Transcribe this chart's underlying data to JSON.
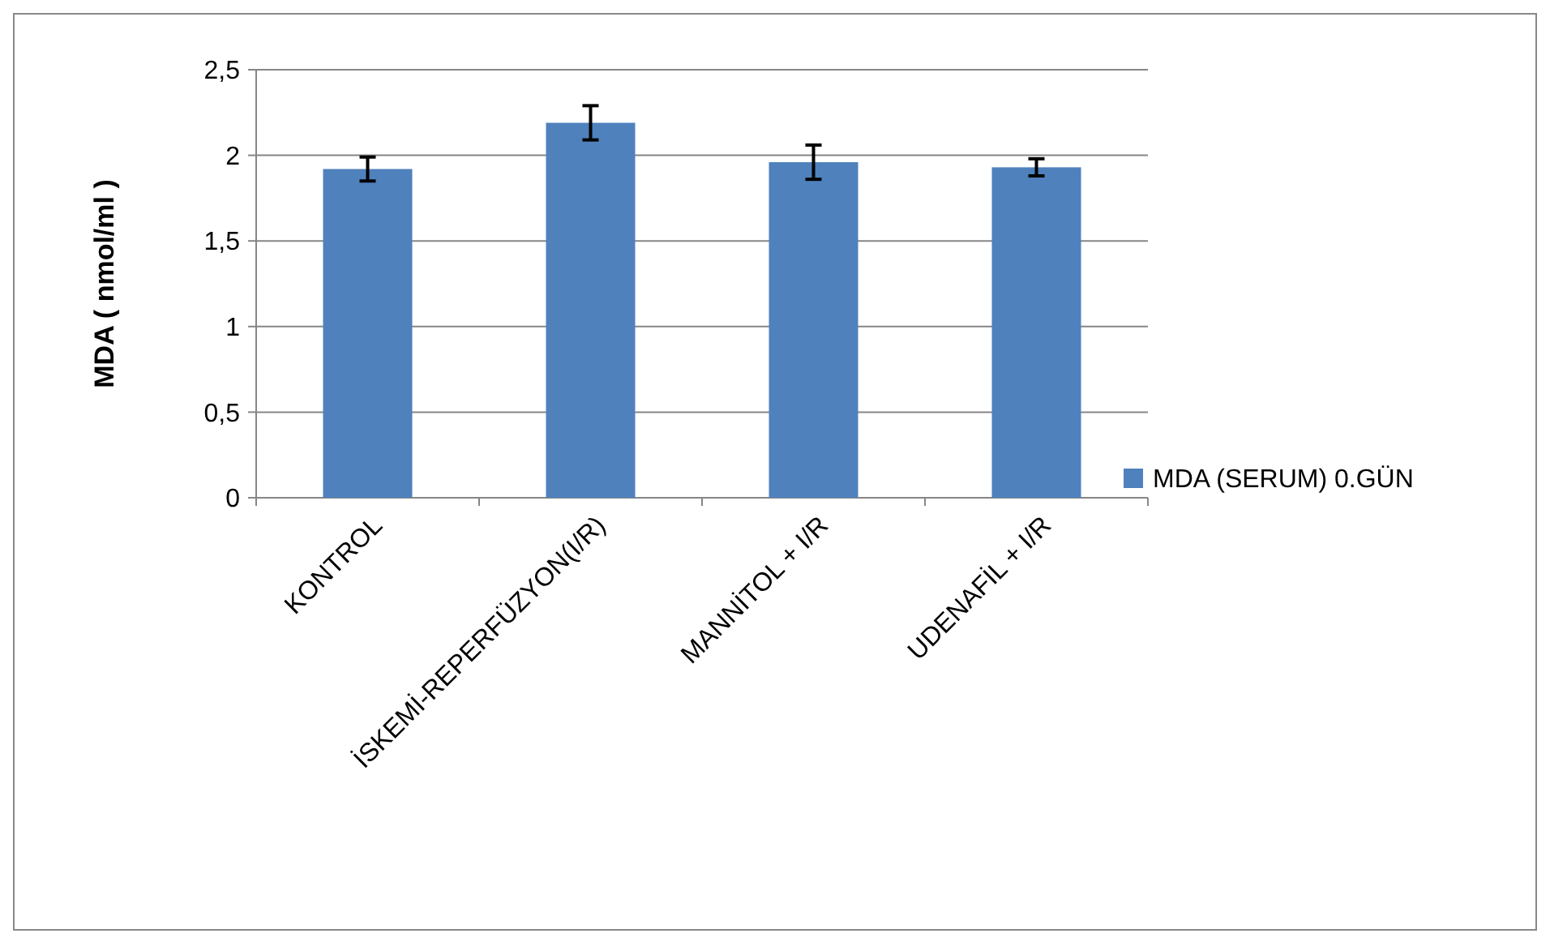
{
  "chart_data": {
    "type": "bar",
    "ylabel": "MDA ( nmol/ml )",
    "categories": [
      "KONTROL",
      "İSKEMİ-REPERFÜZYON(I/R)",
      "MANNİTOL + I/R",
      "UDENAFİL + I/R"
    ],
    "series": [
      {
        "name": "MDA (SERUM) 0.GÜN",
        "color": "#4f81bd",
        "values": [
          1.92,
          2.19,
          1.96,
          1.93
        ],
        "errors": [
          0.07,
          0.1,
          0.1,
          0.05
        ]
      }
    ],
    "ylim": [
      0,
      2.5
    ],
    "yticks": [
      0,
      {
        "value": 0.5,
        "label": "0,5"
      },
      1,
      {
        "value": 1.5,
        "label": "1,5"
      },
      2,
      {
        "value": 2.5,
        "label": "2,5"
      }
    ],
    "grid": "y",
    "legend": "right"
  }
}
